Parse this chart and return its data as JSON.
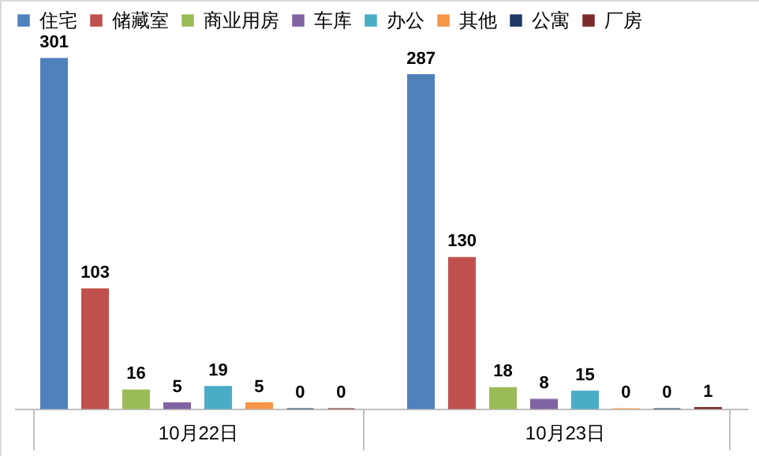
{
  "chart_data": {
    "type": "bar",
    "categories": [
      "10月22日",
      "10月23日"
    ],
    "series": [
      {
        "name": "住宅",
        "color": "#4f81bd",
        "values": [
          301,
          287
        ]
      },
      {
        "name": "储藏室",
        "color": "#c0504d",
        "values": [
          103,
          130
        ]
      },
      {
        "name": "商业用房",
        "color": "#9bbb59",
        "values": [
          16,
          18
        ]
      },
      {
        "name": "车库",
        "color": "#8064a2",
        "values": [
          5,
          8
        ]
      },
      {
        "name": "办公",
        "color": "#4bacc6",
        "values": [
          19,
          15
        ]
      },
      {
        "name": "其他",
        "color": "#f79646",
        "values": [
          5,
          0
        ]
      },
      {
        "name": "公寓",
        "color": "#1f3864",
        "values": [
          0,
          0
        ]
      },
      {
        "name": "厂房",
        "color": "#7b2a2a",
        "values": [
          0,
          1
        ]
      }
    ],
    "data_labels": true,
    "legend": "top",
    "grid": false
  }
}
